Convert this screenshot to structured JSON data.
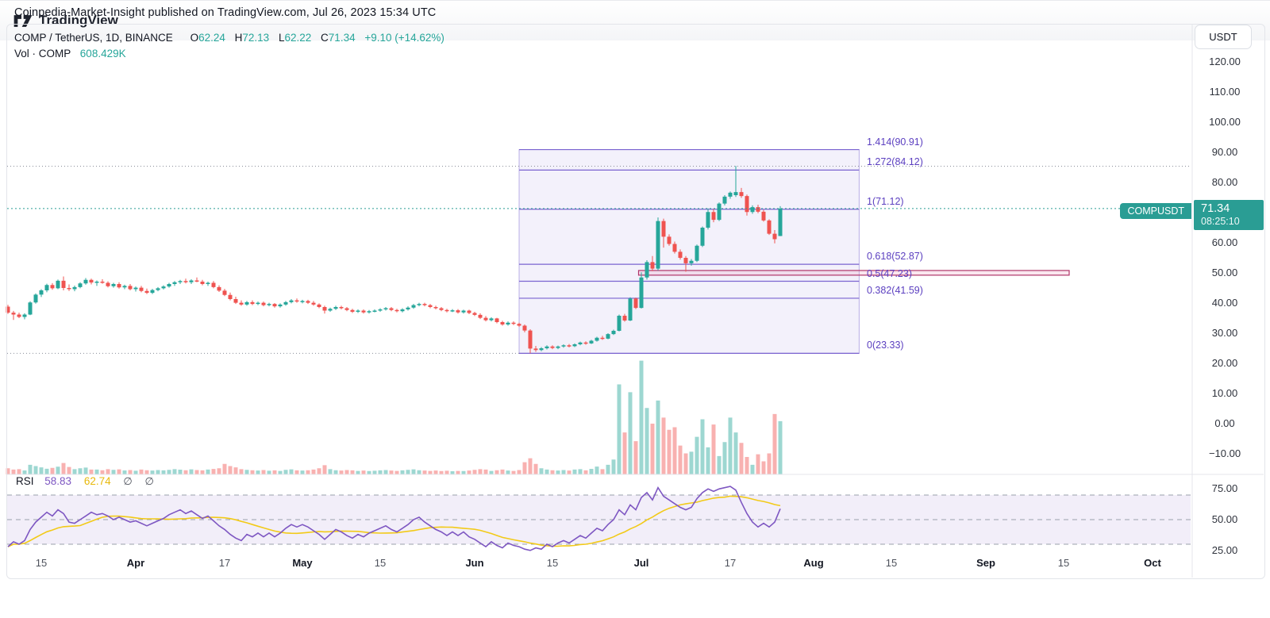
{
  "header": {
    "title": "Coinpedia-Market-Insight published on TradingView.com, Jul 26, 2023 15:34 UTC"
  },
  "legend": {
    "symbol": "COMP / TetherUS, 1D, BINANCE",
    "o_label": "O",
    "o": "62.24",
    "h_label": "H",
    "h": "72.13",
    "l_label": "L",
    "l": "62.22",
    "c_label": "C",
    "c": "71.34",
    "change": "+9.10 (+14.62%)",
    "vol_label": "Vol · COMP",
    "vol": "608.429K"
  },
  "rsi_legend": {
    "label": "RSI",
    "value": "58.83",
    "ma": "62.74",
    "empty1": "∅",
    "empty2": "∅"
  },
  "price_label": {
    "symbol": "COMPUSDT",
    "price": "71.34",
    "countdown": "08:25:10"
  },
  "axis": {
    "currency": "USDT",
    "price_ticks": [
      {
        "label": "120.00",
        "value": 120
      },
      {
        "label": "110.00",
        "value": 110
      },
      {
        "label": "100.00",
        "value": 100
      },
      {
        "label": "90.00",
        "value": 90
      },
      {
        "label": "80.00",
        "value": 80
      },
      {
        "label": "60.00",
        "value": 60
      },
      {
        "label": "50.00",
        "value": 50
      },
      {
        "label": "40.00",
        "value": 40
      },
      {
        "label": "30.00",
        "value": 30
      },
      {
        "label": "20.00",
        "value": 20
      },
      {
        "label": "10.00",
        "value": 10
      },
      {
        "label": "0.00",
        "value": 0
      },
      {
        "label": "−10.00",
        "value": -10
      }
    ],
    "rsi_ticks": [
      {
        "label": "75.00",
        "value": 75
      },
      {
        "label": "50.00",
        "value": 50
      },
      {
        "label": "25.00",
        "value": 25
      }
    ],
    "time_ticks": [
      {
        "label": "15",
        "index": 6,
        "bold": false
      },
      {
        "label": "Apr",
        "index": 23,
        "bold": true
      },
      {
        "label": "17",
        "index": 39,
        "bold": false
      },
      {
        "label": "May",
        "index": 53,
        "bold": true
      },
      {
        "label": "15",
        "index": 67,
        "bold": false
      },
      {
        "label": "Jun",
        "index": 84,
        "bold": true
      },
      {
        "label": "15",
        "index": 98,
        "bold": false
      },
      {
        "label": "Jul",
        "index": 114,
        "bold": true
      },
      {
        "label": "17",
        "index": 130,
        "bold": false
      },
      {
        "label": "Aug",
        "index": 145,
        "bold": true
      },
      {
        "label": "15",
        "index": 159,
        "bold": false
      },
      {
        "label": "Sep",
        "index": 176,
        "bold": true
      },
      {
        "label": "15",
        "index": 190,
        "bold": false
      },
      {
        "label": "Oct",
        "index": 206,
        "bold": true
      }
    ]
  },
  "footer": {
    "brand": "TradingView"
  },
  "colors": {
    "up": "#26a69a",
    "down": "#ef5350",
    "vol_up": "rgba(38,166,154,0.45)",
    "vol_down": "rgba(239,83,80,0.45)",
    "fib_line": "#7a63d0",
    "fib_label": "#5b3fc0",
    "fib_fill": "rgba(103,80,204,0.08)",
    "rsi_line": "#7e57c2",
    "rsi_ma": "#f2ca18",
    "rsi_band": "rgba(126,87,194,0.10)",
    "dash_gray": "#9aa0ab",
    "dotted_gray": "#8b8e99",
    "teal_label": "#2a9d94",
    "pink_border": "#b03569",
    "pink_fill": "rgba(233,146,181,0.22)",
    "separator": "#e4e6eb"
  },
  "chart_data": {
    "type": "candlestick",
    "title": "COMP / TetherUS, 1D, BINANCE",
    "panes": [
      "price+volume",
      "RSI"
    ],
    "price_axis_range": [
      -14,
      125
    ],
    "rsi_axis_range": [
      24,
      76
    ],
    "legend_position": "top-left",
    "grid": "off",
    "ohlc": [
      [
        38.8,
        39.4,
        36.4,
        36.8
      ],
      [
        36.8,
        37.4,
        34.4,
        36.2
      ],
      [
        36.2,
        36.8,
        35.0,
        35.4
      ],
      [
        35.4,
        36.6,
        34.6,
        36.2
      ],
      [
        36.2,
        40.6,
        36.0,
        40.2
      ],
      [
        40.2,
        43.2,
        39.8,
        42.8
      ],
      [
        42.8,
        44.6,
        42.0,
        44.2
      ],
      [
        44.2,
        46.4,
        43.6,
        46.0
      ],
      [
        46.0,
        46.6,
        44.4,
        44.9
      ],
      [
        44.9,
        47.8,
        44.6,
        47.4
      ],
      [
        47.4,
        48.8,
        44.2,
        45.0
      ],
      [
        45.0,
        46.2,
        44.0,
        44.6
      ],
      [
        44.6,
        45.8,
        43.9,
        45.3
      ],
      [
        45.3,
        46.9,
        44.9,
        46.5
      ],
      [
        46.5,
        48.3,
        46.1,
        47.7
      ],
      [
        47.7,
        48.1,
        46.2,
        46.8
      ],
      [
        46.8,
        47.5,
        45.7,
        47.1
      ],
      [
        47.1,
        47.9,
        46.4,
        46.7
      ],
      [
        46.7,
        47.2,
        45.2,
        45.6
      ],
      [
        45.6,
        46.7,
        45.1,
        46.3
      ],
      [
        46.3,
        46.9,
        44.8,
        45.2
      ],
      [
        45.2,
        46.1,
        44.6,
        45.7
      ],
      [
        45.7,
        46.3,
        44.2,
        44.6
      ],
      [
        44.6,
        45.5,
        43.8,
        45.1
      ],
      [
        45.1,
        45.7,
        43.6,
        44.0
      ],
      [
        44.0,
        44.8,
        43.0,
        43.4
      ],
      [
        43.4,
        44.7,
        43.0,
        44.3
      ],
      [
        44.3,
        45.3,
        43.9,
        44.9
      ],
      [
        44.9,
        45.9,
        44.5,
        45.5
      ],
      [
        45.5,
        46.7,
        45.1,
        46.3
      ],
      [
        46.3,
        47.3,
        45.7,
        46.9
      ],
      [
        46.9,
        47.7,
        46.3,
        47.3
      ],
      [
        47.3,
        48.1,
        46.5,
        46.9
      ],
      [
        46.9,
        47.9,
        46.3,
        47.5
      ],
      [
        47.5,
        48.5,
        46.9,
        47.1
      ],
      [
        47.1,
        47.7,
        45.9,
        46.3
      ],
      [
        46.3,
        47.1,
        45.7,
        46.7
      ],
      [
        46.7,
        47.3,
        44.9,
        45.3
      ],
      [
        45.3,
        45.9,
        43.7,
        44.1
      ],
      [
        44.1,
        44.7,
        42.3,
        42.7
      ],
      [
        42.7,
        43.5,
        40.9,
        41.3
      ],
      [
        41.3,
        42.1,
        39.7,
        40.1
      ],
      [
        40.1,
        40.9,
        39.1,
        39.5
      ],
      [
        39.5,
        40.7,
        39.1,
        40.3
      ],
      [
        40.3,
        40.9,
        39.3,
        39.7
      ],
      [
        39.7,
        40.5,
        39.3,
        40.1
      ],
      [
        40.1,
        40.5,
        38.9,
        39.3
      ],
      [
        39.3,
        40.1,
        38.9,
        39.7
      ],
      [
        39.7,
        40.0,
        38.5,
        38.9
      ],
      [
        38.9,
        39.9,
        38.5,
        39.5
      ],
      [
        39.5,
        40.7,
        39.1,
        40.3
      ],
      [
        40.3,
        41.3,
        39.9,
        40.9
      ],
      [
        40.9,
        41.5,
        40.1,
        40.5
      ],
      [
        40.5,
        41.1,
        39.9,
        40.7
      ],
      [
        40.7,
        41.1,
        39.7,
        40.1
      ],
      [
        40.1,
        40.7,
        39.1,
        39.5
      ],
      [
        39.5,
        39.9,
        38.3,
        38.7
      ],
      [
        38.7,
        39.1,
        36.5,
        37.5
      ],
      [
        37.5,
        38.5,
        37.1,
        38.1
      ],
      [
        38.1,
        39.1,
        37.7,
        38.7
      ],
      [
        38.7,
        39.1,
        37.9,
        38.3
      ],
      [
        38.3,
        38.7,
        37.3,
        37.7
      ],
      [
        37.7,
        38.1,
        36.7,
        37.1
      ],
      [
        37.1,
        37.9,
        36.7,
        37.5
      ],
      [
        37.5,
        37.9,
        36.5,
        36.9
      ],
      [
        36.9,
        37.7,
        36.5,
        37.3
      ],
      [
        37.3,
        37.9,
        36.9,
        37.5
      ],
      [
        37.5,
        38.3,
        37.1,
        37.9
      ],
      [
        37.9,
        38.7,
        37.5,
        38.3
      ],
      [
        38.3,
        38.7,
        37.3,
        37.7
      ],
      [
        37.7,
        38.1,
        36.9,
        37.3
      ],
      [
        37.3,
        38.3,
        36.9,
        37.9
      ],
      [
        37.9,
        38.9,
        37.5,
        38.5
      ],
      [
        38.5,
        39.7,
        38.1,
        39.3
      ],
      [
        39.3,
        40.1,
        38.9,
        39.7
      ],
      [
        39.7,
        40.1,
        38.9,
        39.3
      ],
      [
        39.3,
        39.7,
        38.3,
        38.7
      ],
      [
        38.7,
        39.1,
        37.9,
        38.3
      ],
      [
        38.3,
        38.7,
        37.3,
        37.7
      ],
      [
        37.7,
        38.1,
        36.9,
        37.3
      ],
      [
        37.3,
        38.0,
        37.0,
        37.6
      ],
      [
        37.6,
        38.0,
        36.5,
        36.9
      ],
      [
        36.9,
        37.8,
        36.5,
        37.5
      ],
      [
        37.5,
        37.8,
        36.3,
        36.7
      ],
      [
        36.7,
        37.1,
        35.7,
        36.1
      ],
      [
        36.1,
        36.6,
        34.7,
        35.1
      ],
      [
        35.1,
        35.7,
        33.9,
        34.3
      ],
      [
        34.3,
        35.3,
        33.9,
        34.9
      ],
      [
        34.9,
        35.1,
        33.3,
        33.7
      ],
      [
        33.7,
        34.1,
        32.5,
        32.9
      ],
      [
        32.9,
        33.9,
        32.5,
        33.5
      ],
      [
        33.5,
        33.9,
        32.7,
        33.1
      ],
      [
        33.1,
        33.5,
        32.1,
        32.5
      ],
      [
        32.5,
        32.9,
        30.3,
        30.9
      ],
      [
        30.9,
        31.3,
        23.33,
        24.9
      ],
      [
        24.9,
        25.8,
        23.8,
        24.4
      ],
      [
        24.4,
        25.4,
        24.0,
        25.0
      ],
      [
        25.0,
        26.0,
        24.6,
        25.6
      ],
      [
        25.6,
        26.0,
        24.7,
        25.1
      ],
      [
        25.1,
        25.9,
        24.7,
        25.6
      ],
      [
        25.6,
        26.3,
        25.2,
        26.0
      ],
      [
        26.0,
        26.4,
        25.3,
        25.7
      ],
      [
        25.7,
        26.6,
        25.4,
        26.3
      ],
      [
        26.3,
        27.2,
        26.0,
        26.9
      ],
      [
        26.9,
        27.3,
        26.2,
        26.6
      ],
      [
        26.6,
        27.8,
        26.4,
        27.5
      ],
      [
        27.5,
        28.8,
        27.2,
        28.5
      ],
      [
        28.5,
        29.1,
        27.8,
        28.2
      ],
      [
        28.2,
        30.0,
        28.0,
        29.7
      ],
      [
        29.7,
        31.2,
        29.4,
        30.8
      ],
      [
        30.8,
        36.2,
        30.6,
        35.8
      ],
      [
        35.8,
        36.4,
        33.8,
        34.2
      ],
      [
        34.2,
        41.9,
        34.0,
        41.5
      ],
      [
        41.5,
        41.8,
        38.0,
        38.4
      ],
      [
        38.4,
        50.2,
        38.2,
        48.5
      ],
      [
        48.5,
        54.2,
        47.8,
        53.6
      ],
      [
        53.6,
        55.6,
        50.6,
        51.4
      ],
      [
        51.4,
        68.4,
        50.8,
        67.2
      ],
      [
        67.2,
        68.0,
        58.4,
        62.0
      ],
      [
        62.0,
        62.8,
        59.0,
        59.6
      ],
      [
        59.6,
        60.4,
        56.4,
        57.0
      ],
      [
        57.0,
        57.8,
        54.4,
        55.0
      ],
      [
        55.0,
        55.6,
        50.4,
        53.2
      ],
      [
        53.2,
        54.6,
        52.4,
        54.0
      ],
      [
        54.0,
        59.4,
        53.6,
        59.0
      ],
      [
        59.0,
        65.4,
        58.6,
        65.0
      ],
      [
        65.0,
        71.4,
        64.4,
        70.2
      ],
      [
        70.2,
        71.2,
        66.8,
        67.6
      ],
      [
        67.6,
        73.4,
        67.2,
        73.0
      ],
      [
        73.0,
        75.8,
        72.4,
        75.3
      ],
      [
        75.3,
        77.0,
        74.6,
        76.6
      ],
      [
        75.8,
        85.5,
        75.2,
        76.8
      ],
      [
        76.8,
        78.2,
        74.9,
        75.5
      ],
      [
        75.5,
        76.0,
        69.0,
        70.2
      ],
      [
        70.2,
        72.4,
        69.6,
        71.8
      ],
      [
        71.8,
        72.6,
        69.8,
        70.3
      ],
      [
        70.3,
        70.9,
        67.0,
        67.4
      ],
      [
        67.4,
        67.8,
        62.6,
        63.0
      ],
      [
        63.0,
        64.2,
        59.8,
        61.2
      ],
      [
        62.24,
        72.13,
        62.22,
        71.34
      ]
    ],
    "volume_k": [
      70,
      55,
      60,
      45,
      110,
      95,
      80,
      65,
      75,
      88,
      130,
      85,
      60,
      70,
      78,
      55,
      55,
      48,
      60,
      52,
      58,
      45,
      50,
      42,
      55,
      48,
      44,
      50,
      46,
      52,
      60,
      54,
      48,
      58,
      50,
      46,
      55,
      62,
      70,
      120,
      95,
      80,
      60,
      52,
      48,
      44,
      50,
      42,
      46,
      40,
      52,
      58,
      46,
      44,
      48,
      56,
      70,
      105,
      60,
      48,
      44,
      50,
      46,
      40,
      44,
      38,
      42,
      46,
      50,
      44,
      40,
      46,
      52,
      58,
      48,
      44,
      40,
      44,
      38,
      42,
      36,
      40,
      38,
      44,
      52,
      60,
      56,
      40,
      48,
      56,
      44,
      40,
      50,
      140,
      185,
      120,
      70,
      55,
      48,
      44,
      50,
      44,
      56,
      60,
      46,
      64,
      90,
      60,
      110,
      170,
      1030,
      480,
      940,
      380,
      1300,
      760,
      580,
      845,
      650,
      510,
      540,
      330,
      240,
      260,
      430,
      630,
      310,
      570,
      210,
      370,
      650,
      480,
      360,
      200,
      110,
      230,
      150,
      240,
      690,
      608.429
    ],
    "rsi": [
      28,
      32,
      30,
      33,
      42,
      48,
      52,
      56,
      53,
      58,
      55,
      48,
      47,
      50,
      53,
      56,
      54,
      55,
      53,
      50,
      52,
      50,
      48,
      49,
      47,
      45,
      47,
      49,
      51,
      54,
      56,
      58,
      55,
      57,
      54,
      51,
      53,
      49,
      45,
      42,
      38,
      35,
      33,
      38,
      36,
      39,
      36,
      39,
      36,
      39,
      43,
      46,
      44,
      46,
      44,
      41,
      38,
      34,
      38,
      42,
      40,
      37,
      35,
      38,
      36,
      39,
      41,
      43,
      45,
      42,
      40,
      43,
      46,
      50,
      52,
      48,
      45,
      42,
      40,
      37,
      40,
      37,
      40,
      36,
      34,
      31,
      28,
      32,
      29,
      27,
      31,
      29,
      28,
      26,
      25,
      27,
      26,
      30,
      28,
      31,
      33,
      31,
      34,
      37,
      35,
      39,
      43,
      41,
      46,
      50,
      58,
      54,
      62,
      58,
      68,
      72,
      66,
      76,
      69,
      66,
      63,
      60,
      58,
      60,
      67,
      72,
      75,
      73,
      75,
      76,
      77,
      74,
      64,
      55,
      48,
      44,
      47,
      44,
      48,
      58.83
    ],
    "rsi_ma_window": 14,
    "fib": {
      "start_index": 92,
      "end_index": 153.2,
      "levels": [
        {
          "ratio": "1.414",
          "price": 90.91,
          "label": "1.414(90.91)"
        },
        {
          "ratio": "1.272",
          "price": 84.12,
          "label": "1.272(84.12)"
        },
        {
          "ratio": "1",
          "price": 71.12,
          "label": "1(71.12)"
        },
        {
          "ratio": "0.618",
          "price": 52.87,
          "label": "0.618(52.87)"
        },
        {
          "ratio": "0.5",
          "price": 47.23,
          "label": "0.5(47.23)"
        },
        {
          "ratio": "0.382",
          "price": 41.59,
          "label": "0.382(41.59)"
        },
        {
          "ratio": "0",
          "price": 23.33,
          "label": "0(23.33)"
        }
      ]
    },
    "lines": {
      "current_price": 71.34,
      "high_dotted": 85.4,
      "low_dotted": 23.33
    },
    "pink_box": {
      "price_top": 50.8,
      "price_bottom": 49.25,
      "start_index": 113.5,
      "end_index": 191
    },
    "rsi_bands": {
      "upper": 70,
      "middle": 50,
      "lower": 30
    }
  }
}
